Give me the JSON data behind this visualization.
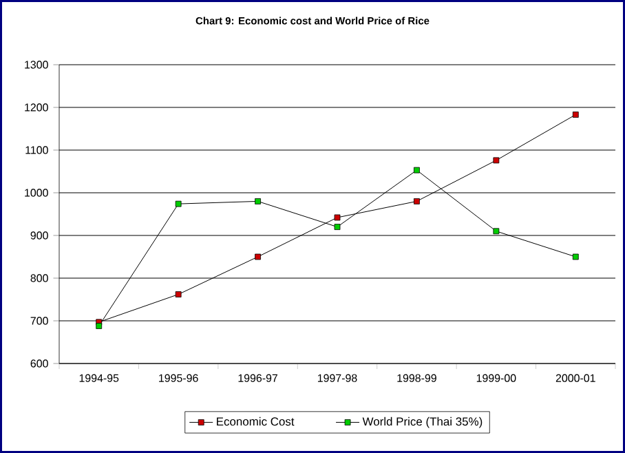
{
  "chart_data": {
    "type": "line",
    "title": "Chart 9: Economic cost and World Price of Rice",
    "categories": [
      "1994-95",
      "1995-96",
      "1996-97",
      "1997-98",
      "1998-99",
      "1999-00",
      "2000-01"
    ],
    "series": [
      {
        "name": "Economic Cost",
        "color": "#cc0000",
        "values": [
          697,
          762,
          850,
          942,
          980,
          1076,
          1183
        ]
      },
      {
        "name": "World Price (Thai 35%)",
        "color": "#00cc00",
        "values": [
          688,
          974,
          980,
          920,
          1053,
          910,
          850
        ]
      }
    ],
    "ylim": [
      600,
      1300
    ],
    "yticks": [
      600,
      700,
      800,
      900,
      1000,
      1100,
      1200,
      1300
    ],
    "grid": "y",
    "legend": "bottom",
    "marker": "square",
    "line_style": "solid"
  }
}
